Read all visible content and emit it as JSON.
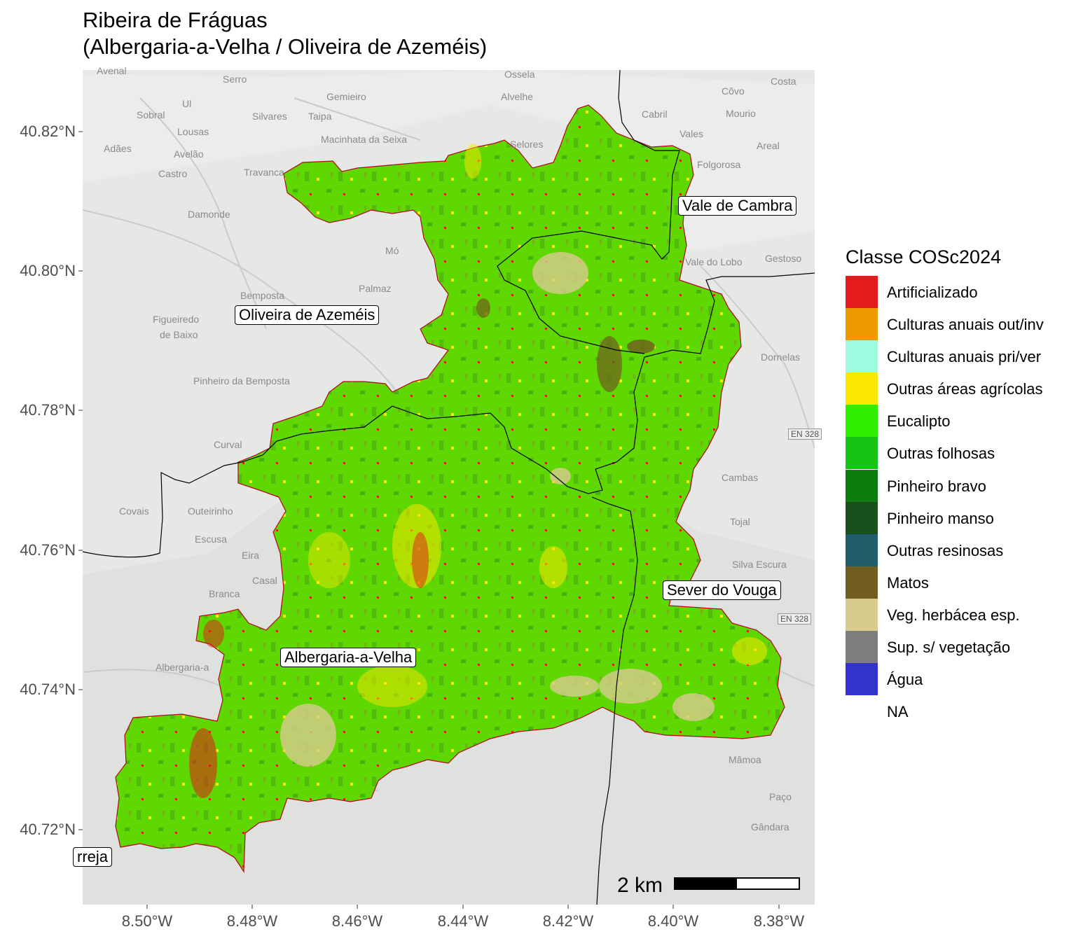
{
  "title": {
    "line1": "Ribeira de Fráguas",
    "line2": "(Albergaria-a-Velha / Oliveira de Azeméis)"
  },
  "axes": {
    "y_ticks": [
      "40.82°N",
      "40.80°N",
      "40.78°N",
      "40.76°N",
      "40.74°N",
      "40.72°N"
    ],
    "x_ticks": [
      "8.50°W",
      "8.48°W",
      "8.46°W",
      "8.44°W",
      "8.42°W",
      "8.40°W",
      "8.38°W"
    ]
  },
  "legend": {
    "title": "Classe COSc2024",
    "items": [
      {
        "label": "Artificializado",
        "color": "#e41a1c"
      },
      {
        "label": "Culturas anuais out/inv",
        "color": "#ee9a00"
      },
      {
        "label": "Culturas anuais pri/ver",
        "color": "#9ffae2"
      },
      {
        "label": "Outras áreas agrícolas",
        "color": "#fae800"
      },
      {
        "label": "Eucalipto",
        "color": "#2eee00"
      },
      {
        "label": "Outras folhosas",
        "color": "#15c315"
      },
      {
        "label": "Pinheiro bravo",
        "color": "#0f7c0f"
      },
      {
        "label": "Pinheiro manso",
        "color": "#19501c"
      },
      {
        "label": "Outras resinosas",
        "color": "#215e6b"
      },
      {
        "label": "Matos",
        "color": "#705d1f"
      },
      {
        "label": "Veg. herbácea esp.",
        "color": "#d8cb8e"
      },
      {
        "label": "Sup. s/ vegetação",
        "color": "#7d7d7d"
      },
      {
        "label": "Água",
        "color": "#3232cd"
      },
      {
        "label": "NA",
        "color": "#ffffff"
      }
    ]
  },
  "municipalities": [
    {
      "name": "Vale de Cambra"
    },
    {
      "name": "Oliveira de Azeméis"
    },
    {
      "name": "Sever do Vouga"
    },
    {
      "name": "Albergaria-a-Velha"
    },
    {
      "name": "rreja"
    }
  ],
  "basemap_places": [
    "Avenal",
    "Serro",
    "Ossela",
    "Côvo",
    "Costa",
    "Ul",
    "Gemieiro",
    "Alvelhe",
    "Sobral",
    "Silvares",
    "Taipa",
    "Cabril",
    "Mourio",
    "Lousas",
    "Macinhata da Seixa",
    "Selores",
    "Vales",
    "Areal",
    "Adães",
    "Avelão",
    "Castro",
    "Travanca",
    "Folgorosa",
    "Damonde",
    "Mó",
    "Vale do Lobo",
    "Gestoso",
    "Bemposta",
    "Palmaz",
    "Figueiredo",
    "de Baixo",
    "Dornelas",
    "Pinheiro da Bemposta",
    "Curval",
    "Cambas",
    "Covais",
    "Outeirinho",
    "Tojal",
    "Escusa",
    "Eira",
    "Silva Escura",
    "Casal",
    "Branca",
    "Albergaria-a",
    "Mâmoa",
    "Paço",
    "Gândara"
  ],
  "roads": [
    "EN 328",
    "EN 328"
  ],
  "scale_bar": {
    "label": "2 km"
  }
}
